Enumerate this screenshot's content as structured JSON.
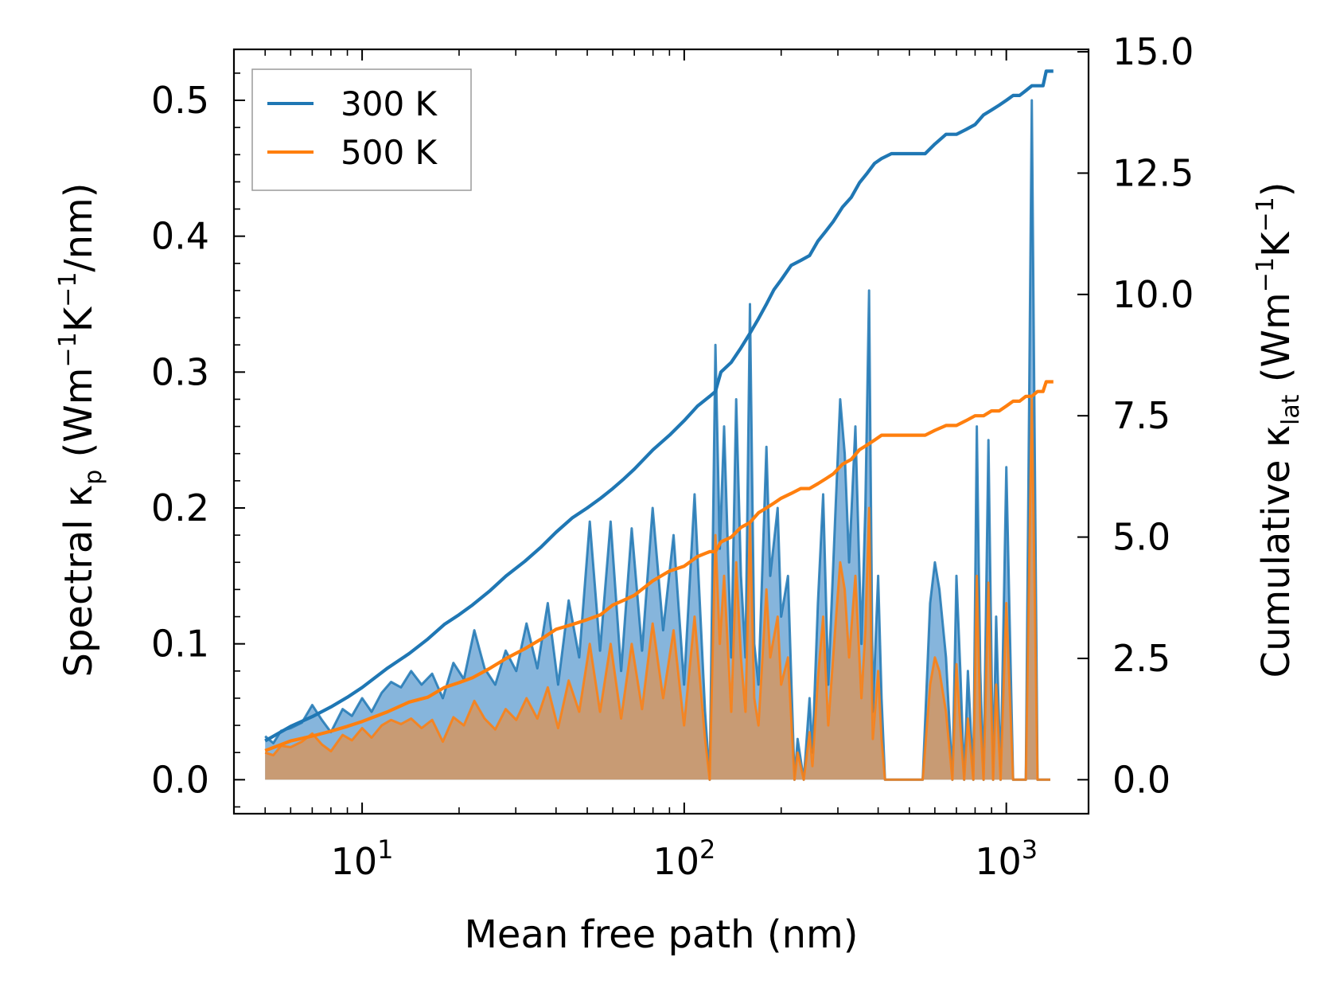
{
  "chart_data": {
    "type": "line",
    "xscale": "log",
    "xlabel": "Mean free path (nm)",
    "ylabel_left": {
      "prefix": "Spectral κ",
      "sub": "p",
      "unit_open": " (Wm",
      "e1": "−1",
      "k": "K",
      "e2": "−1",
      "unit_close": "/nm)"
    },
    "ylabel_right": {
      "prefix": "Cumulative κ",
      "sub": "lat",
      "unit_open": " (Wm",
      "e1": "−1",
      "k": "K",
      "e2": "−1",
      "unit_close": ")"
    },
    "xlim": [
      4,
      1800
    ],
    "ylim_left": [
      -0.025,
      0.5375
    ],
    "ylim_right": [
      -0.7,
      15.05
    ],
    "x_ticks": [
      {
        "value": 10,
        "base": "10",
        "exp": "1"
      },
      {
        "value": 100,
        "base": "10",
        "exp": "2"
      },
      {
        "value": 1000,
        "base": "10",
        "exp": "3"
      }
    ],
    "y_ticks_left": [
      "0.0",
      "0.1",
      "0.2",
      "0.3",
      "0.4",
      "0.5"
    ],
    "y_ticks_right": [
      "0.0",
      "2.5",
      "5.0",
      "7.5",
      "10.0",
      "12.5",
      "15.0"
    ],
    "legend": {
      "position": "upper-left",
      "entries": [
        "300 K",
        "500 K"
      ]
    },
    "colors": {
      "300 K": "#1f77b4",
      "500 K": "#ff7f0e",
      "fill_300": "#86b5dc",
      "fill_500": "#c89b74"
    },
    "spectral": {
      "x": [
        5.0,
        5.3,
        5.6,
        6.0,
        6.5,
        7.0,
        7.5,
        8.0,
        8.7,
        9.3,
        10.0,
        10.7,
        11.5,
        12.3,
        13.2,
        14.2,
        15.3,
        16.5,
        17.8,
        19.2,
        20.7,
        22.3,
        24.0,
        25.9,
        27.9,
        30.1,
        32.4,
        35.0,
        37.7,
        40.6,
        43.8,
        47.2,
        50.9,
        54.8,
        59.1,
        63.7,
        68.7,
        74.0,
        79.8,
        86.0,
        92.7,
        99.9,
        107.7,
        116.1,
        120.0,
        125.0,
        129.0,
        133.0,
        140.0,
        145.0,
        150.0,
        155.0,
        160.0,
        165.0,
        170.0,
        180.0,
        185.0,
        195.0,
        200.0,
        210.0,
        220.0,
        225.0,
        235.0,
        245.0,
        250.0,
        260.0,
        270.0,
        280.0,
        295.0,
        305.0,
        315.0,
        325.0,
        340.0,
        355.0,
        365.0,
        375.0,
        385.0,
        400.0,
        410.0,
        420.0,
        450.0,
        500.0,
        550.0,
        580.0,
        600.0,
        620.0,
        650.0,
        680.0,
        700.0,
        720.0,
        740.0,
        760.0,
        790.0,
        810.0,
        830.0,
        850.0,
        880.0,
        910.0,
        930.0,
        960.0,
        1000.0,
        1050.0,
        1080.0,
        1110.0,
        1150.0,
        1200.0,
        1250.0,
        1300.0,
        1330.0,
        1370.0
      ],
      "y300": [
        0.032,
        0.027,
        0.036,
        0.038,
        0.042,
        0.055,
        0.044,
        0.035,
        0.052,
        0.047,
        0.06,
        0.05,
        0.064,
        0.072,
        0.068,
        0.08,
        0.07,
        0.078,
        0.06,
        0.086,
        0.074,
        0.11,
        0.082,
        0.07,
        0.095,
        0.08,
        0.115,
        0.082,
        0.13,
        0.07,
        0.132,
        0.09,
        0.19,
        0.095,
        0.19,
        0.08,
        0.185,
        0.095,
        0.2,
        0.11,
        0.18,
        0.07,
        0.21,
        0.05,
        0.0,
        0.32,
        0.17,
        0.26,
        0.09,
        0.28,
        0.15,
        0.09,
        0.35,
        0.1,
        0.07,
        0.245,
        0.15,
        0.2,
        0.12,
        0.15,
        0.0,
        0.03,
        0.0,
        0.06,
        0.02,
        0.13,
        0.21,
        0.07,
        0.2,
        0.28,
        0.24,
        0.16,
        0.26,
        0.1,
        0.2,
        0.36,
        0.05,
        0.15,
        0.06,
        0.0,
        0.0,
        0.0,
        0.0,
        0.13,
        0.16,
        0.14,
        0.09,
        0.0,
        0.15,
        0.08,
        0.0,
        0.08,
        0.0,
        0.26,
        0.08,
        0.0,
        0.25,
        0.0,
        0.12,
        0.0,
        0.23,
        0.0,
        0.0,
        0.0,
        0.0,
        0.5,
        0.0,
        0.0,
        0.0,
        0.0
      ],
      "y500": [
        0.02,
        0.018,
        0.025,
        0.024,
        0.028,
        0.034,
        0.026,
        0.021,
        0.033,
        0.029,
        0.038,
        0.031,
        0.04,
        0.044,
        0.041,
        0.045,
        0.038,
        0.044,
        0.028,
        0.046,
        0.04,
        0.058,
        0.045,
        0.037,
        0.052,
        0.044,
        0.06,
        0.045,
        0.068,
        0.038,
        0.073,
        0.05,
        0.1,
        0.05,
        0.1,
        0.045,
        0.1,
        0.052,
        0.115,
        0.06,
        0.11,
        0.04,
        0.12,
        0.03,
        0.0,
        0.18,
        0.1,
        0.15,
        0.05,
        0.16,
        0.09,
        0.05,
        0.19,
        0.06,
        0.04,
        0.14,
        0.09,
        0.12,
        0.07,
        0.09,
        0.0,
        0.02,
        0.0,
        0.035,
        0.01,
        0.075,
        0.12,
        0.04,
        0.115,
        0.16,
        0.14,
        0.09,
        0.15,
        0.06,
        0.11,
        0.2,
        0.03,
        0.08,
        0.03,
        0.0,
        0.0,
        0.0,
        0.0,
        0.07,
        0.09,
        0.08,
        0.05,
        0.0,
        0.085,
        0.04,
        0.0,
        0.045,
        0.0,
        0.15,
        0.045,
        0.0,
        0.145,
        0.0,
        0.07,
        0.0,
        0.13,
        0.0,
        0.0,
        0.0,
        0.0,
        0.28,
        0.0,
        0.0,
        0.0,
        0.0
      ]
    },
    "cumulative": {
      "x": [
        5.0,
        6.0,
        7.0,
        8.0,
        9.0,
        10.0,
        12.0,
        14.0,
        16.0,
        18.0,
        20.0,
        22.0,
        25.0,
        28.0,
        32.0,
        36.0,
        40.0,
        45.0,
        50.0,
        55.0,
        60.0,
        65.0,
        70.0,
        80.0,
        90.0,
        100.0,
        110.0,
        120.0,
        125.0,
        130.0,
        140.0,
        150.0,
        160.0,
        170.0,
        180.0,
        190.0,
        200.0,
        215.0,
        230.0,
        245.0,
        260.0,
        275.0,
        290.0,
        310.0,
        330.0,
        350.0,
        370.0,
        390.0,
        410.0,
        440.0,
        500.0,
        560.0,
        600.0,
        650.0,
        700.0,
        750.0,
        800.0,
        850.0,
        900.0,
        950.0,
        1000.0,
        1050.0,
        1100.0,
        1150.0,
        1200.0,
        1250.0,
        1300.0,
        1330.0,
        1400.0
      ],
      "y300": [
        0.8,
        1.1,
        1.3,
        1.5,
        1.7,
        1.9,
        2.3,
        2.6,
        2.9,
        3.2,
        3.4,
        3.6,
        3.9,
        4.2,
        4.5,
        4.8,
        5.1,
        5.4,
        5.6,
        5.8,
        6.0,
        6.2,
        6.4,
        6.8,
        7.1,
        7.4,
        7.7,
        7.9,
        8.0,
        8.4,
        8.6,
        8.9,
        9.2,
        9.5,
        9.8,
        10.1,
        10.3,
        10.6,
        10.7,
        10.8,
        11.1,
        11.3,
        11.5,
        11.8,
        12.0,
        12.3,
        12.5,
        12.7,
        12.8,
        12.9,
        12.9,
        12.9,
        13.1,
        13.3,
        13.3,
        13.4,
        13.5,
        13.7,
        13.8,
        13.9,
        14.0,
        14.1,
        14.1,
        14.2,
        14.3,
        14.3,
        14.3,
        14.6,
        14.6
      ],
      "y500": [
        0.6,
        0.8,
        0.9,
        1.0,
        1.1,
        1.2,
        1.4,
        1.6,
        1.7,
        1.9,
        2.0,
        2.1,
        2.3,
        2.5,
        2.7,
        2.9,
        3.1,
        3.2,
        3.3,
        3.4,
        3.6,
        3.7,
        3.8,
        4.1,
        4.3,
        4.4,
        4.6,
        4.7,
        4.7,
        4.9,
        5.0,
        5.2,
        5.3,
        5.5,
        5.6,
        5.7,
        5.8,
        5.9,
        6.0,
        6.0,
        6.1,
        6.2,
        6.3,
        6.5,
        6.6,
        6.8,
        6.9,
        7.0,
        7.1,
        7.1,
        7.1,
        7.1,
        7.2,
        7.3,
        7.3,
        7.4,
        7.5,
        7.5,
        7.6,
        7.6,
        7.7,
        7.8,
        7.8,
        7.9,
        7.9,
        8.0,
        8.0,
        8.2,
        8.2
      ]
    }
  }
}
